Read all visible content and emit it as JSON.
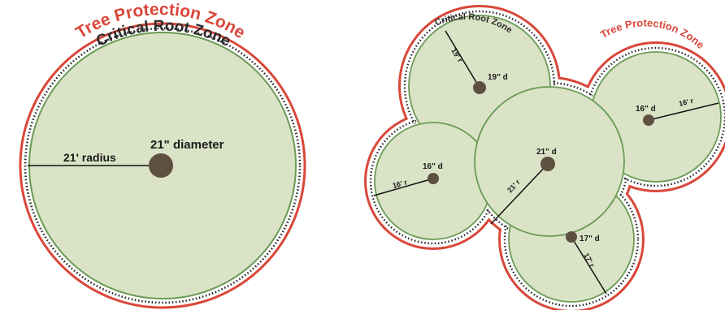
{
  "colors": {
    "tpz_outline": "#d9473a",
    "crz_dotted": "#2b2b2b",
    "canopy_fill": "#dbe3c6",
    "canopy_stroke": "#6a9a55",
    "trunk": "#5e5041",
    "radius_line": "#111111"
  },
  "single_tree": {
    "tpz_label": "Tree Protection Zone",
    "crz_label": "Critical Root Zone",
    "diameter_label": "21\" diameter",
    "radius_label": "21' radius"
  },
  "group_trees": {
    "tpz_label": "Tree Protection Zone",
    "crz_label": "Critical Root Zone",
    "trees": [
      {
        "diameter_label": "19\" d",
        "radius_label": "19' r"
      },
      {
        "diameter_label": "16\" d",
        "radius_label": "16' r"
      },
      {
        "diameter_label": "21\" d",
        "radius_label": "21' r"
      },
      {
        "diameter_label": "16\" d",
        "radius_label": "16' r"
      },
      {
        "diameter_label": "17\" d",
        "radius_label": "17' r"
      }
    ]
  }
}
